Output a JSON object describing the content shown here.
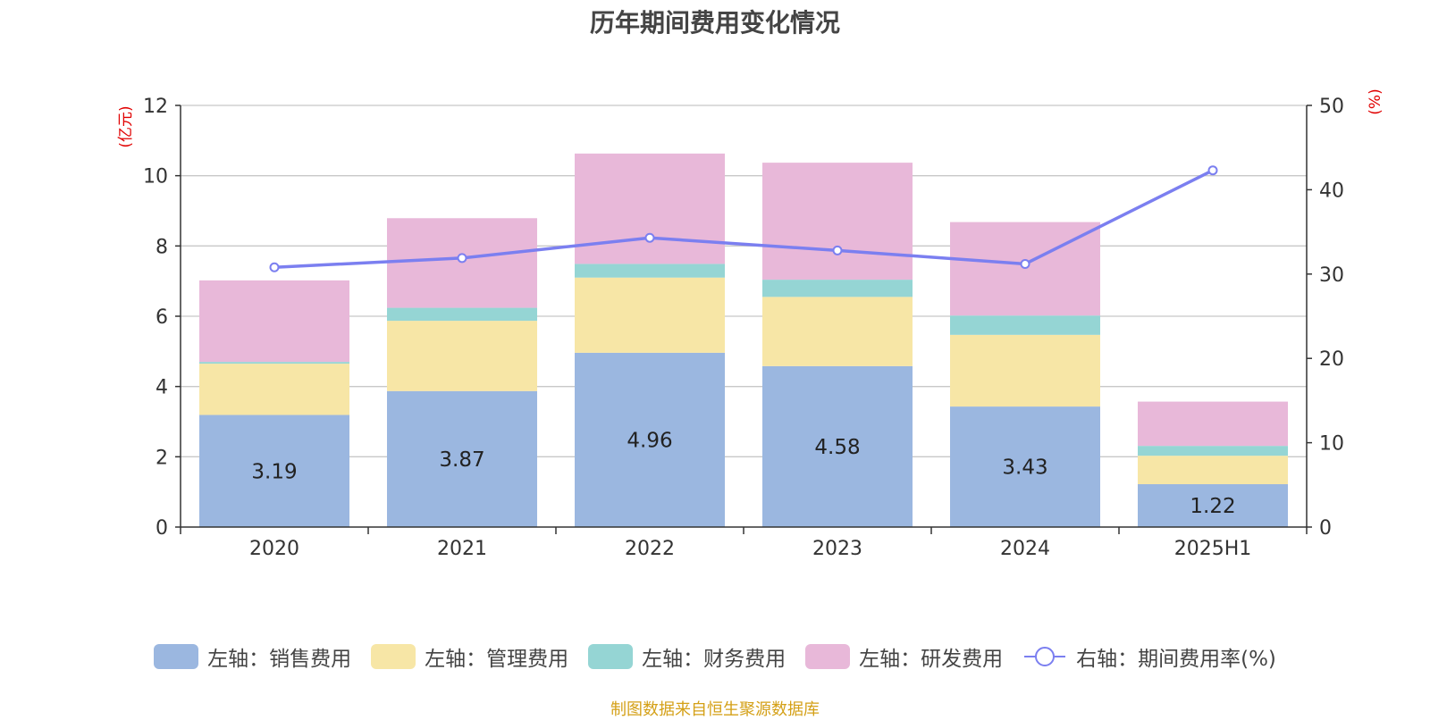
{
  "chart_data": {
    "type": "bar",
    "title": "历年期间费用变化情况",
    "categories": [
      "2020",
      "2021",
      "2022",
      "2023",
      "2024",
      "2025H1"
    ],
    "left_axis": {
      "label": "(亿元)",
      "ylim": [
        0,
        12
      ],
      "ticks": [
        "0",
        "2",
        "4",
        "6",
        "8",
        "10",
        "12"
      ]
    },
    "right_axis": {
      "label": "(%)",
      "ylim": [
        0,
        50
      ],
      "ticks": [
        "0",
        "10",
        "20",
        "30",
        "40",
        "50"
      ]
    },
    "series": [
      {
        "name": "左轴：销售费用",
        "type": "stacked-bar",
        "axis": "left",
        "color": "#9bb7e0",
        "values": [
          3.19,
          3.87,
          4.96,
          4.58,
          3.43,
          1.22
        ],
        "show_labels": true
      },
      {
        "name": "左轴：管理费用",
        "type": "stacked-bar",
        "axis": "left",
        "color": "#f7e6a6",
        "values": [
          1.46,
          2.0,
          2.14,
          1.97,
          2.04,
          0.81
        ]
      },
      {
        "name": "左轴：财务费用",
        "type": "stacked-bar",
        "axis": "left",
        "color": "#95d5d4",
        "values": [
          0.05,
          0.37,
          0.39,
          0.49,
          0.55,
          0.28
        ]
      },
      {
        "name": "左轴：研发费用",
        "type": "stacked-bar",
        "axis": "left",
        "color": "#e8b8d9",
        "values": [
          2.32,
          2.55,
          3.14,
          3.33,
          2.66,
          1.26
        ]
      },
      {
        "name": "右轴：期间费用率(%)",
        "type": "line",
        "axis": "right",
        "color": "#7b7ff0",
        "values": [
          30.8,
          31.9,
          34.3,
          32.8,
          31.2,
          42.3
        ]
      }
    ],
    "grid": true,
    "legend_position": "bottom"
  },
  "footer": {
    "source": "制图数据来自恒生聚源数据库"
  }
}
